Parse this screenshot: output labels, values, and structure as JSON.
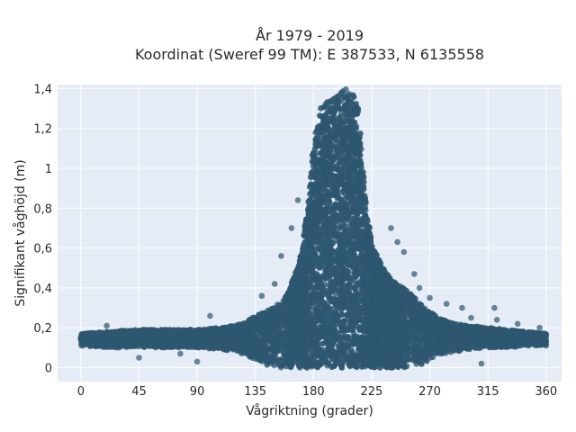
{
  "chart_data": {
    "type": "scatter",
    "title": [
      "År 1979 - 2019",
      "Koordinat (Sweref 99 TM): E 387533, N 6135558"
    ],
    "xlabel": "Vågriktning (grader)",
    "ylabel": "Signifikant våghöjd (m)",
    "xlim": [
      -18,
      372
    ],
    "ylim": [
      -0.07,
      1.42
    ],
    "xticks": [
      0,
      45,
      90,
      135,
      180,
      225,
      270,
      315,
      360
    ],
    "xtick_labels": [
      "0",
      "45",
      "90",
      "135",
      "180",
      "225",
      "270",
      "315",
      "360"
    ],
    "yticks": [
      0,
      0.2,
      0.4,
      0.6,
      0.8,
      1.0,
      1.2,
      1.4
    ],
    "ytick_labels": [
      "0",
      "0,2",
      "0,4",
      "0,6",
      "0,8",
      "1",
      "1,2",
      "1,4"
    ],
    "grid": true,
    "colors": {
      "marker": "#2e5770",
      "plot_bg": "#e5ecf6",
      "grid": "#ffffff"
    },
    "envelope": {
      "description_units": "wave height (m) vs direction (degrees)",
      "x": [
        0,
        20,
        45,
        70,
        90,
        110,
        125,
        135,
        145,
        155,
        160,
        165,
        170,
        175,
        180,
        185,
        190,
        195,
        200,
        205,
        210,
        215,
        220,
        225,
        230,
        235,
        240,
        245,
        250,
        255,
        260,
        265,
        270,
        280,
        290,
        300,
        315,
        330,
        345,
        360
      ],
      "upper": [
        0.17,
        0.18,
        0.19,
        0.19,
        0.19,
        0.2,
        0.22,
        0.26,
        0.29,
        0.33,
        0.37,
        0.46,
        0.56,
        0.78,
        1.12,
        1.3,
        1.34,
        1.35,
        1.38,
        1.4,
        1.39,
        1.29,
        0.86,
        0.62,
        0.55,
        0.49,
        0.44,
        0.42,
        0.4,
        0.37,
        0.34,
        0.31,
        0.28,
        0.24,
        0.22,
        0.21,
        0.2,
        0.19,
        0.18,
        0.17
      ],
      "lower": [
        0.11,
        0.1,
        0.1,
        0.1,
        0.1,
        0.09,
        0.07,
        0.04,
        0.01,
        0.0,
        0.0,
        0.0,
        0.0,
        0.0,
        0.0,
        0.0,
        0.0,
        0.0,
        0.0,
        0.0,
        0.0,
        0.0,
        0.0,
        0.0,
        0.0,
        0.0,
        0.0,
        0.0,
        0.0,
        0.0,
        0.01,
        0.02,
        0.04,
        0.07,
        0.08,
        0.09,
        0.1,
        0.1,
        0.11,
        0.11
      ]
    },
    "outliers": [
      {
        "x": 100,
        "y": 0.26
      },
      {
        "x": 140,
        "y": 0.36
      },
      {
        "x": 150,
        "y": 0.42
      },
      {
        "x": 155,
        "y": 0.56
      },
      {
        "x": 163,
        "y": 0.7
      },
      {
        "x": 168,
        "y": 0.84
      },
      {
        "x": 240,
        "y": 0.7
      },
      {
        "x": 245,
        "y": 0.63
      },
      {
        "x": 250,
        "y": 0.58
      },
      {
        "x": 258,
        "y": 0.47
      },
      {
        "x": 262,
        "y": 0.4
      },
      {
        "x": 270,
        "y": 0.35
      },
      {
        "x": 283,
        "y": 0.32
      },
      {
        "x": 295,
        "y": 0.3
      },
      {
        "x": 302,
        "y": 0.25
      },
      {
        "x": 320,
        "y": 0.3
      },
      {
        "x": 322,
        "y": 0.24
      },
      {
        "x": 338,
        "y": 0.22
      },
      {
        "x": 45,
        "y": 0.05
      },
      {
        "x": 90,
        "y": 0.03
      },
      {
        "x": 77,
        "y": 0.07
      },
      {
        "x": 310,
        "y": 0.02
      },
      {
        "x": 355,
        "y": 0.2
      },
      {
        "x": 20,
        "y": 0.21
      }
    ]
  }
}
